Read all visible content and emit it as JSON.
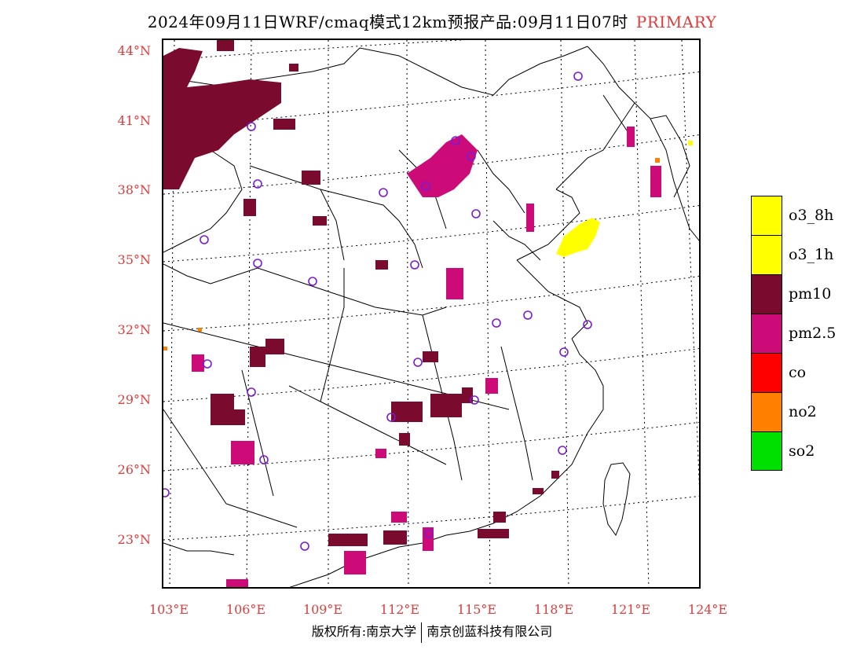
{
  "title": {
    "text": "2024年09月11日WRF/cmaq模式12km预报产品:09月11日07时",
    "tag": "PRIMARY"
  },
  "axes": {
    "lat_labels": [
      "44°N",
      "41°N",
      "38°N",
      "35°N",
      "32°N",
      "29°N",
      "26°N",
      "23°N"
    ],
    "lon_labels": [
      "103°E",
      "106°E",
      "109°E",
      "112°E",
      "115°E",
      "118°E",
      "121°E",
      "124°E"
    ],
    "label_color": "#e23b3b"
  },
  "legend": [
    {
      "label": "o3_8h",
      "color": "#ffff00"
    },
    {
      "label": "o3_1h",
      "color": "#ffff00"
    },
    {
      "label": "pm10",
      "color": "#7a0a2e"
    },
    {
      "label": "pm2.5",
      "color": "#cc0a78"
    },
    {
      "label": "co",
      "color": "#ff0000"
    },
    {
      "label": "no2",
      "color": "#ff7f00"
    },
    {
      "label": "so2",
      "color": "#00e000"
    }
  ],
  "footer": {
    "left": "版权所有:南京大学",
    "right": "南京创蓝科技有限公司"
  }
}
